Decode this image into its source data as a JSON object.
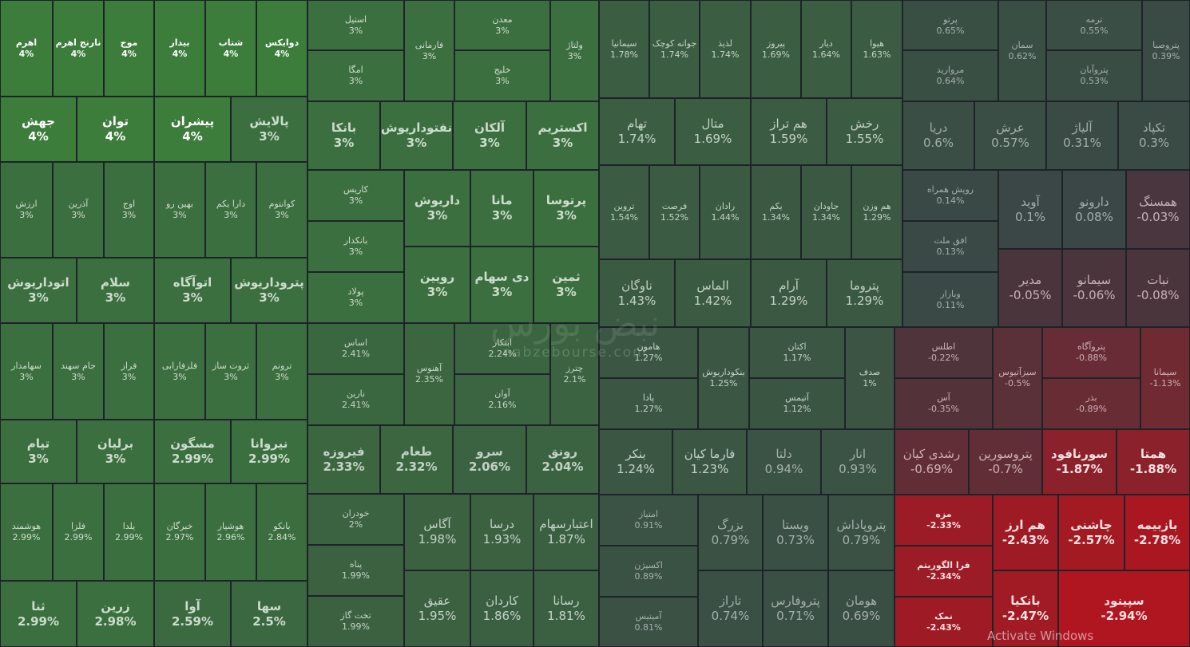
{
  "chart_data": {
    "type": "treemap",
    "color_scale": {
      "positive": "#2e8b3a",
      "neutral": "#3a4246",
      "negative": "#c0141e"
    },
    "tiles": [
      {
        "name": "اهرم",
        "value": 4,
        "label": "4%"
      },
      {
        "name": "نارنج اهرم",
        "value": 4,
        "label": "4%"
      },
      {
        "name": "موج",
        "value": 4,
        "label": "4%"
      },
      {
        "name": "بیدار",
        "value": 4,
        "label": "4%"
      },
      {
        "name": "شتاب",
        "value": 4,
        "label": "4%"
      },
      {
        "name": "دوایکس",
        "value": 4,
        "label": "4%"
      },
      {
        "name": "جهش",
        "value": 4,
        "label": "4%"
      },
      {
        "name": "توان",
        "value": 4,
        "label": "4%"
      },
      {
        "name": "پیشران",
        "value": 4,
        "label": "4%"
      },
      {
        "name": "پالایش",
        "value": 3,
        "label": "3%"
      },
      {
        "name": "ارزش",
        "value": 3,
        "label": "3%"
      },
      {
        "name": "آذرین",
        "value": 3,
        "label": "3%"
      },
      {
        "name": "اوج",
        "value": 3,
        "label": "3%"
      },
      {
        "name": "بهین رو",
        "value": 3,
        "label": "3%"
      },
      {
        "name": "دارا یکم",
        "value": 3,
        "label": "3%"
      },
      {
        "name": "کوانتوم",
        "value": 3,
        "label": "3%"
      },
      {
        "name": "اتوداریوش",
        "value": 3,
        "label": "3%"
      },
      {
        "name": "سلام",
        "value": 3,
        "label": "3%"
      },
      {
        "name": "اتوآگاه",
        "value": 3,
        "label": "3%"
      },
      {
        "name": "پتروداریوش",
        "value": 3,
        "label": "3%"
      },
      {
        "name": "سهامدار",
        "value": 3,
        "label": "3%"
      },
      {
        "name": "جام سهند",
        "value": 3,
        "label": "3%"
      },
      {
        "name": "فراز",
        "value": 3,
        "label": "3%"
      },
      {
        "name": "فلزفارابی",
        "value": 3,
        "label": "3%"
      },
      {
        "name": "ثروت ساز",
        "value": 3,
        "label": "3%"
      },
      {
        "name": "ترونم",
        "value": 3,
        "label": "3%"
      },
      {
        "name": "تیام",
        "value": 3,
        "label": "3%"
      },
      {
        "name": "برلیان",
        "value": 3,
        "label": "3%"
      },
      {
        "name": "مسگون",
        "value": 2.99,
        "label": "2.99%"
      },
      {
        "name": "نیروانا",
        "value": 2.99,
        "label": "2.99%"
      },
      {
        "name": "هوشمند",
        "value": 2.99,
        "label": "2.99%"
      },
      {
        "name": "فلزا",
        "value": 2.99,
        "label": "2.99%"
      },
      {
        "name": "یلدا",
        "value": 2.99,
        "label": "2.99%"
      },
      {
        "name": "خبرگان",
        "value": 2.97,
        "label": "2.97%"
      },
      {
        "name": "هوشیار",
        "value": 2.96,
        "label": "2.96%"
      },
      {
        "name": "بانکو",
        "value": 2.84,
        "label": "2.84%"
      },
      {
        "name": "ثنا",
        "value": 2.99,
        "label": "2.99%"
      },
      {
        "name": "زرین",
        "value": 2.98,
        "label": "2.98%"
      },
      {
        "name": "آوا",
        "value": 2.59,
        "label": "2.59%"
      },
      {
        "name": "سها",
        "value": 2.5,
        "label": "2.5%"
      },
      {
        "name": "استیل",
        "value": 3,
        "label": "3%"
      },
      {
        "name": "امگا",
        "value": 3,
        "label": "3%"
      },
      {
        "name": "فارمانی",
        "value": 3,
        "label": "3%"
      },
      {
        "name": "معدن",
        "value": 3,
        "label": "3%"
      },
      {
        "name": "خلیج",
        "value": 3,
        "label": "3%"
      },
      {
        "name": "ولتاژ",
        "value": 3,
        "label": "3%"
      },
      {
        "name": "بانکا",
        "value": 3,
        "label": "3%"
      },
      {
        "name": "نفتوداریوش",
        "value": 3,
        "label": "3%"
      },
      {
        "name": "آلکان",
        "value": 3,
        "label": "3%"
      },
      {
        "name": "اکستریم",
        "value": 3,
        "label": "3%"
      },
      {
        "name": "کاریس",
        "value": 3,
        "label": "3%"
      },
      {
        "name": "بانکدار",
        "value": 3,
        "label": "3%"
      },
      {
        "name": "پولاد",
        "value": 3,
        "label": "3%"
      },
      {
        "name": "داریوش",
        "value": 3,
        "label": "3%"
      },
      {
        "name": "مانا",
        "value": 3,
        "label": "3%"
      },
      {
        "name": "پرتوسا",
        "value": 3,
        "label": "3%"
      },
      {
        "name": "رویین",
        "value": 3,
        "label": "3%"
      },
      {
        "name": "دی سهام",
        "value": 3,
        "label": "3%"
      },
      {
        "name": "ثمین",
        "value": 3,
        "label": "3%"
      },
      {
        "name": "اساس",
        "value": 2.41,
        "label": "2.41%"
      },
      {
        "name": "نارین",
        "value": 2.41,
        "label": "2.41%"
      },
      {
        "name": "آهنوس",
        "value": 2.35,
        "label": "2.35%"
      },
      {
        "name": "ابتکار",
        "value": 2.24,
        "label": "2.24%"
      },
      {
        "name": "آوان",
        "value": 2.16,
        "label": "2.16%"
      },
      {
        "name": "چترز",
        "value": 2.1,
        "label": "2.1%"
      },
      {
        "name": "فیروزه",
        "value": 2.33,
        "label": "2.33%"
      },
      {
        "name": "طعام",
        "value": 2.32,
        "label": "2.32%"
      },
      {
        "name": "سرو",
        "value": 2.06,
        "label": "2.06%"
      },
      {
        "name": "رونق",
        "value": 2.04,
        "label": "2.04%"
      },
      {
        "name": "خودران",
        "value": 2,
        "label": "2%"
      },
      {
        "name": "پناه",
        "value": 1.99,
        "label": "1.99%"
      },
      {
        "name": "تخت گاز",
        "value": 1.99,
        "label": "1.99%"
      },
      {
        "name": "آگاس",
        "value": 1.98,
        "label": "1.98%"
      },
      {
        "name": "درسا",
        "value": 1.93,
        "label": "1.93%"
      },
      {
        "name": "اعتبارسهام",
        "value": 1.87,
        "label": "1.87%"
      },
      {
        "name": "عقیق",
        "value": 1.95,
        "label": "1.95%"
      },
      {
        "name": "کاردان",
        "value": 1.86,
        "label": "1.86%"
      },
      {
        "name": "رسانا",
        "value": 1.81,
        "label": "1.81%"
      },
      {
        "name": "سیمانیا",
        "value": 1.78,
        "label": "1.78%"
      },
      {
        "name": "جوانه کوچک",
        "value": 1.74,
        "label": "1.74%"
      },
      {
        "name": "لذیذ",
        "value": 1.74,
        "label": "1.74%"
      },
      {
        "name": "پیروز",
        "value": 1.69,
        "label": "1.69%"
      },
      {
        "name": "دیار",
        "value": 1.64,
        "label": "1.64%"
      },
      {
        "name": "هیوا",
        "value": 1.63,
        "label": "1.63%"
      },
      {
        "name": "تهام",
        "value": 1.74,
        "label": "1.74%"
      },
      {
        "name": "متال",
        "value": 1.69,
        "label": "1.69%"
      },
      {
        "name": "هم تراز",
        "value": 1.59,
        "label": "1.59%"
      },
      {
        "name": "رخش",
        "value": 1.55,
        "label": "1.55%"
      },
      {
        "name": "تروین",
        "value": 1.54,
        "label": "1.54%"
      },
      {
        "name": "فرصت",
        "value": 1.52,
        "label": "1.52%"
      },
      {
        "name": "رادان",
        "value": 1.44,
        "label": "1.44%"
      },
      {
        "name": "یکم",
        "value": 1.34,
        "label": "1.34%"
      },
      {
        "name": "جاودان",
        "value": 1.34,
        "label": "1.34%"
      },
      {
        "name": "هم وزن",
        "value": 1.29,
        "label": "1.29%"
      },
      {
        "name": "ناوگان",
        "value": 1.43,
        "label": "1.43%"
      },
      {
        "name": "الماس",
        "value": 1.42,
        "label": "1.42%"
      },
      {
        "name": "آرام",
        "value": 1.29,
        "label": "1.29%"
      },
      {
        "name": "پتروما",
        "value": 1.29,
        "label": "1.29%"
      },
      {
        "name": "هامون",
        "value": 1.27,
        "label": "1.27%"
      },
      {
        "name": "پادا",
        "value": 1.27,
        "label": "1.27%"
      },
      {
        "name": "بنکوداریوش",
        "value": 1.25,
        "label": "1.25%"
      },
      {
        "name": "اکتان",
        "value": 1.17,
        "label": "1.17%"
      },
      {
        "name": "آتیمس",
        "value": 1.12,
        "label": "1.12%"
      },
      {
        "name": "صدف",
        "value": 1,
        "label": "1%"
      },
      {
        "name": "بنکر",
        "value": 1.24,
        "label": "1.24%"
      },
      {
        "name": "فارما کیان",
        "value": 1.23,
        "label": "1.23%"
      },
      {
        "name": "دلتا",
        "value": 0.94,
        "label": "0.94%"
      },
      {
        "name": "انار",
        "value": 0.93,
        "label": "0.93%"
      },
      {
        "name": "امتیاز",
        "value": 0.91,
        "label": "0.91%"
      },
      {
        "name": "اکسیژن",
        "value": 0.89,
        "label": "0.89%"
      },
      {
        "name": "آمیتیس",
        "value": 0.81,
        "label": "0.81%"
      },
      {
        "name": "بزرگ",
        "value": 0.79,
        "label": "0.79%"
      },
      {
        "name": "تاراز",
        "value": 0.74,
        "label": "0.74%"
      },
      {
        "name": "ویستا",
        "value": 0.73,
        "label": "0.73%"
      },
      {
        "name": "پتروپاداش",
        "value": 0.79,
        "label": "0.79%"
      },
      {
        "name": "پتروفارس",
        "value": 0.71,
        "label": "0.71%"
      },
      {
        "name": "هومان",
        "value": 0.69,
        "label": "0.69%"
      },
      {
        "name": "پرتو",
        "value": 0.65,
        "label": "0.65%"
      },
      {
        "name": "مروارید",
        "value": 0.64,
        "label": "0.64%"
      },
      {
        "name": "سمان",
        "value": 0.62,
        "label": "0.62%"
      },
      {
        "name": "ترمه",
        "value": 0.55,
        "label": "0.55%"
      },
      {
        "name": "پتروآبان",
        "value": 0.53,
        "label": "0.53%"
      },
      {
        "name": "پتروصبا",
        "value": 0.39,
        "label": "0.39%"
      },
      {
        "name": "دریا",
        "value": 0.6,
        "label": "0.6%"
      },
      {
        "name": "عرش",
        "value": 0.57,
        "label": "0.57%"
      },
      {
        "name": "آلیاژ",
        "value": 0.31,
        "label": "0.31%"
      },
      {
        "name": "تکپاد",
        "value": 0.3,
        "label": "0.3%"
      },
      {
        "name": "رویش همراه",
        "value": 0.14,
        "label": "0.14%"
      },
      {
        "name": "افق ملت",
        "value": 0.13,
        "label": "0.13%"
      },
      {
        "name": "وبازار",
        "value": 0.11,
        "label": "0.11%"
      },
      {
        "name": "آوید",
        "value": 0.1,
        "label": "0.1%"
      },
      {
        "name": "دارونو",
        "value": 0.08,
        "label": "0.08%"
      },
      {
        "name": "همسنگ",
        "value": -0.03,
        "label": "-0.03%"
      },
      {
        "name": "مدیر",
        "value": -0.05,
        "label": "-0.05%"
      },
      {
        "name": "سیمانو",
        "value": -0.06,
        "label": "-0.06%"
      },
      {
        "name": "نبات",
        "value": -0.08,
        "label": "-0.08%"
      },
      {
        "name": "اطلس",
        "value": -0.22,
        "label": "-0.22%"
      },
      {
        "name": "آس",
        "value": -0.35,
        "label": "-0.35%"
      },
      {
        "name": "سیزآتیوس",
        "value": -0.5,
        "label": "-0.5%"
      },
      {
        "name": "پتروآگاه",
        "value": -0.88,
        "label": "-0.88%"
      },
      {
        "name": "بذر",
        "value": -0.89,
        "label": "-0.89%"
      },
      {
        "name": "سیمانا",
        "value": -1.13,
        "label": "-1.13%"
      },
      {
        "name": "رشدی کیان",
        "value": -0.69,
        "label": "-0.69%"
      },
      {
        "name": "پتروسورین",
        "value": -0.7,
        "label": "-0.7%"
      },
      {
        "name": "سورنافود",
        "value": -1.87,
        "label": "-1.87%"
      },
      {
        "name": "همتا",
        "value": -1.88,
        "label": "-1.88%"
      },
      {
        "name": "مزه",
        "value": -2.33,
        "label": "-2.33%"
      },
      {
        "name": "فرا الگوریتم",
        "value": -2.34,
        "label": "-2.34%"
      },
      {
        "name": "نمک",
        "value": -2.43,
        "label": "-2.43%"
      },
      {
        "name": "هم ارز",
        "value": -2.43,
        "label": "-2.43%"
      },
      {
        "name": "چاشنی",
        "value": -2.57,
        "label": "-2.57%"
      },
      {
        "name": "بازبیمه",
        "value": -2.78,
        "label": "-2.78%"
      },
      {
        "name": "بانکیا",
        "value": -2.47,
        "label": "-2.47%"
      },
      {
        "name": "سپینود",
        "value": -2.94,
        "label": "-2.94%"
      }
    ]
  },
  "watermark": {
    "brand": "نبض بورس",
    "url": "nabzebourse.com"
  },
  "os_notice": "Activate Windows"
}
